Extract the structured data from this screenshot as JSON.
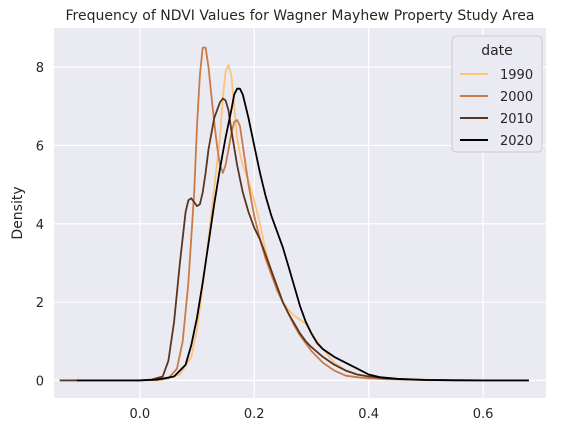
{
  "chart_data": {
    "type": "line",
    "title": "Frequency of NDVI Values for Wagner Mayhew Property Study Area",
    "xlabel": "",
    "ylabel": "Density",
    "xlim": [
      -0.15,
      0.71
    ],
    "ylim": [
      -0.45,
      9.0
    ],
    "x_ticks": [
      0.0,
      0.2,
      0.4,
      0.6
    ],
    "x_tick_labels": [
      "0.0",
      "0.2",
      "0.4",
      "0.6"
    ],
    "y_ticks": [
      0,
      2,
      4,
      6,
      8
    ],
    "y_tick_labels": [
      "0",
      "2",
      "4",
      "6",
      "8"
    ],
    "grid": true,
    "plot_background": "#eaeaf2",
    "grid_color": "#ffffff",
    "legend": {
      "title": "date",
      "placement": "top-right"
    },
    "series": [
      {
        "name": "1990",
        "color": "#fdc27a",
        "points": [
          [
            -0.13,
            0
          ],
          [
            0.0,
            0
          ],
          [
            0.04,
            0.02
          ],
          [
            0.07,
            0.15
          ],
          [
            0.09,
            0.6
          ],
          [
            0.1,
            1.3
          ],
          [
            0.11,
            2.4
          ],
          [
            0.12,
            3.6
          ],
          [
            0.13,
            4.9
          ],
          [
            0.14,
            6.2
          ],
          [
            0.145,
            7.2
          ],
          [
            0.15,
            7.9
          ],
          [
            0.155,
            8.05
          ],
          [
            0.16,
            7.8
          ],
          [
            0.165,
            7.0
          ],
          [
            0.17,
            6.2
          ],
          [
            0.175,
            5.8
          ],
          [
            0.18,
            5.5
          ],
          [
            0.19,
            5.1
          ],
          [
            0.2,
            4.6
          ],
          [
            0.21,
            4.0
          ],
          [
            0.22,
            3.3
          ],
          [
            0.23,
            2.8
          ],
          [
            0.24,
            2.4
          ],
          [
            0.25,
            2.0
          ],
          [
            0.26,
            1.8
          ],
          [
            0.27,
            1.65
          ],
          [
            0.28,
            1.55
          ],
          [
            0.29,
            1.45
          ],
          [
            0.3,
            1.2
          ],
          [
            0.32,
            0.8
          ],
          [
            0.34,
            0.45
          ],
          [
            0.36,
            0.25
          ],
          [
            0.38,
            0.15
          ],
          [
            0.4,
            0.1
          ],
          [
            0.43,
            0.05
          ],
          [
            0.47,
            0.02
          ],
          [
            0.52,
            0.01
          ],
          [
            0.6,
            0
          ],
          [
            0.68,
            0
          ]
        ]
      },
      {
        "name": "2000",
        "color": "#cc7a45",
        "points": [
          [
            -0.14,
            0
          ],
          [
            0.0,
            0
          ],
          [
            0.03,
            0.01
          ],
          [
            0.05,
            0.05
          ],
          [
            0.065,
            0.3
          ],
          [
            0.075,
            1.0
          ],
          [
            0.085,
            2.5
          ],
          [
            0.095,
            4.8
          ],
          [
            0.1,
            6.5
          ],
          [
            0.105,
            7.8
          ],
          [
            0.11,
            8.5
          ],
          [
            0.115,
            8.5
          ],
          [
            0.12,
            8.0
          ],
          [
            0.125,
            7.3
          ],
          [
            0.13,
            6.6
          ],
          [
            0.135,
            6.0
          ],
          [
            0.14,
            5.5
          ],
          [
            0.145,
            5.3
          ],
          [
            0.15,
            5.5
          ],
          [
            0.155,
            5.9
          ],
          [
            0.16,
            6.3
          ],
          [
            0.165,
            6.6
          ],
          [
            0.17,
            6.65
          ],
          [
            0.175,
            6.5
          ],
          [
            0.18,
            6.0
          ],
          [
            0.19,
            5.0
          ],
          [
            0.2,
            4.2
          ],
          [
            0.21,
            3.6
          ],
          [
            0.22,
            3.1
          ],
          [
            0.23,
            2.7
          ],
          [
            0.24,
            2.3
          ],
          [
            0.25,
            2.0
          ],
          [
            0.26,
            1.7
          ],
          [
            0.27,
            1.4
          ],
          [
            0.28,
            1.15
          ],
          [
            0.29,
            0.95
          ],
          [
            0.3,
            0.75
          ],
          [
            0.32,
            0.45
          ],
          [
            0.34,
            0.25
          ],
          [
            0.36,
            0.12
          ],
          [
            0.38,
            0.08
          ],
          [
            0.4,
            0.05
          ],
          [
            0.43,
            0.03
          ],
          [
            0.47,
            0.02
          ],
          [
            0.52,
            0.01
          ],
          [
            0.6,
            0
          ],
          [
            0.68,
            0
          ]
        ]
      },
      {
        "name": "2010",
        "color": "#5a3520",
        "points": [
          [
            -0.14,
            0
          ],
          [
            0.0,
            0
          ],
          [
            0.02,
            0.02
          ],
          [
            0.04,
            0.1
          ],
          [
            0.05,
            0.5
          ],
          [
            0.06,
            1.5
          ],
          [
            0.07,
            3.0
          ],
          [
            0.08,
            4.3
          ],
          [
            0.085,
            4.6
          ],
          [
            0.09,
            4.65
          ],
          [
            0.095,
            4.55
          ],
          [
            0.1,
            4.45
          ],
          [
            0.105,
            4.5
          ],
          [
            0.11,
            4.8
          ],
          [
            0.115,
            5.3
          ],
          [
            0.12,
            5.9
          ],
          [
            0.13,
            6.7
          ],
          [
            0.14,
            7.1
          ],
          [
            0.145,
            7.2
          ],
          [
            0.15,
            7.15
          ],
          [
            0.155,
            6.9
          ],
          [
            0.16,
            6.4
          ],
          [
            0.17,
            5.5
          ],
          [
            0.18,
            4.8
          ],
          [
            0.19,
            4.3
          ],
          [
            0.2,
            3.9
          ],
          [
            0.21,
            3.6
          ],
          [
            0.22,
            3.2
          ],
          [
            0.23,
            2.8
          ],
          [
            0.24,
            2.4
          ],
          [
            0.25,
            2.0
          ],
          [
            0.26,
            1.7
          ],
          [
            0.27,
            1.45
          ],
          [
            0.28,
            1.2
          ],
          [
            0.29,
            1.0
          ],
          [
            0.3,
            0.85
          ],
          [
            0.32,
            0.6
          ],
          [
            0.34,
            0.4
          ],
          [
            0.36,
            0.25
          ],
          [
            0.38,
            0.15
          ],
          [
            0.4,
            0.1
          ],
          [
            0.43,
            0.05
          ],
          [
            0.47,
            0.02
          ],
          [
            0.52,
            0.01
          ],
          [
            0.6,
            0
          ],
          [
            0.68,
            0
          ]
        ]
      },
      {
        "name": "2020",
        "color": "#000000",
        "points": [
          [
            -0.11,
            0
          ],
          [
            0.0,
            0
          ],
          [
            0.03,
            0.02
          ],
          [
            0.06,
            0.1
          ],
          [
            0.08,
            0.4
          ],
          [
            0.09,
            0.9
          ],
          [
            0.1,
            1.6
          ],
          [
            0.11,
            2.5
          ],
          [
            0.12,
            3.5
          ],
          [
            0.13,
            4.5
          ],
          [
            0.14,
            5.4
          ],
          [
            0.15,
            6.2
          ],
          [
            0.16,
            6.9
          ],
          [
            0.165,
            7.3
          ],
          [
            0.17,
            7.45
          ],
          [
            0.175,
            7.45
          ],
          [
            0.18,
            7.3
          ],
          [
            0.19,
            6.7
          ],
          [
            0.2,
            6.0
          ],
          [
            0.21,
            5.3
          ],
          [
            0.22,
            4.7
          ],
          [
            0.23,
            4.2
          ],
          [
            0.24,
            3.8
          ],
          [
            0.25,
            3.4
          ],
          [
            0.26,
            2.9
          ],
          [
            0.27,
            2.4
          ],
          [
            0.28,
            1.9
          ],
          [
            0.29,
            1.5
          ],
          [
            0.3,
            1.2
          ],
          [
            0.31,
            0.95
          ],
          [
            0.32,
            0.8
          ],
          [
            0.34,
            0.6
          ],
          [
            0.36,
            0.45
          ],
          [
            0.38,
            0.3
          ],
          [
            0.4,
            0.15
          ],
          [
            0.42,
            0.08
          ],
          [
            0.45,
            0.04
          ],
          [
            0.5,
            0.01
          ],
          [
            0.55,
            0
          ],
          [
            0.68,
            0
          ]
        ]
      }
    ]
  }
}
